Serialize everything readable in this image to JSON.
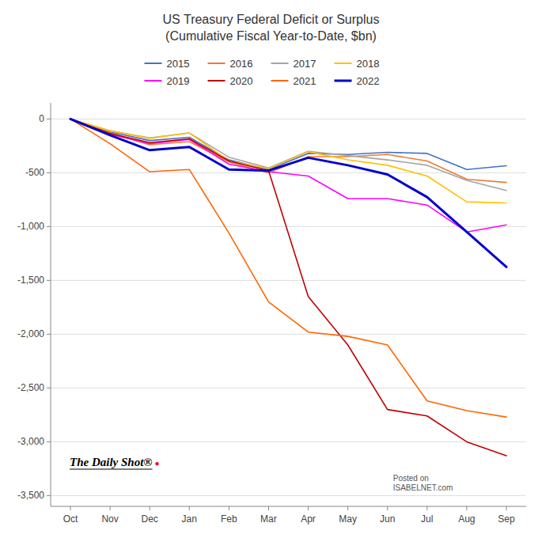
{
  "chart_data": {
    "type": "line",
    "title": "US Treasury Federal Deficit or Surplus\n(Cumulative Fiscal Year-to-Date, $bn)",
    "categories": [
      "Oct",
      "Nov",
      "Dec",
      "Jan",
      "Feb",
      "Mar",
      "Apr",
      "May",
      "Jun",
      "Jul",
      "Aug",
      "Sep"
    ],
    "series": [
      {
        "name": "2015",
        "color": "#4472C4",
        "values": [
          0,
          -120,
          -200,
          -170,
          -380,
          -470,
          -320,
          -330,
          -310,
          -320,
          -470,
          -435
        ]
      },
      {
        "name": "2016",
        "color": "#ED7D31",
        "values": [
          0,
          -130,
          -240,
          -210,
          -400,
          -500,
          -350,
          -350,
          -330,
          -390,
          -560,
          -590
        ]
      },
      {
        "name": "2017",
        "color": "#A5A5A5",
        "values": [
          0,
          -110,
          -175,
          -130,
          -355,
          -455,
          -300,
          -340,
          -380,
          -430,
          -570,
          -665
        ]
      },
      {
        "name": "2018",
        "color": "#FFC000",
        "values": [
          0,
          -110,
          -180,
          -130,
          -390,
          -460,
          -305,
          -380,
          -430,
          -530,
          -770,
          -780
        ]
      },
      {
        "name": "2019",
        "color": "#FF00FF",
        "values": [
          0,
          -140,
          -230,
          -190,
          -420,
          -490,
          -530,
          -740,
          -740,
          -800,
          -1050,
          -984
        ]
      },
      {
        "name": "2020",
        "color": "#C00000",
        "values": [
          0,
          -135,
          -220,
          -185,
          -390,
          -480,
          -1650,
          -2100,
          -2700,
          -2760,
          -3000,
          -3130
        ]
      },
      {
        "name": "2021",
        "color": "#FF6600",
        "values": [
          0,
          -230,
          -490,
          -470,
          -1060,
          -1700,
          -1980,
          -2020,
          -2100,
          -2620,
          -2710,
          -2770
        ]
      },
      {
        "name": "2022",
        "color": "#0000CC",
        "values": [
          0,
          -150,
          -290,
          -260,
          -470,
          -480,
          -360,
          -430,
          -515,
          -726,
          -1050,
          -1375
        ]
      }
    ],
    "ylim": [
      -3600,
      150
    ],
    "yticks": [
      0,
      -500,
      {
        "value": -1000,
        "label": "-1,000"
      },
      {
        "value": -1500,
        "label": "-1,500"
      },
      {
        "value": -2000,
        "label": "-2,000"
      },
      {
        "value": -2500,
        "label": "-2,500"
      },
      {
        "value": -3000,
        "label": "-3,000"
      },
      {
        "value": -3500,
        "label": "-3,500"
      }
    ],
    "grid": true,
    "legend": "top",
    "annotations": [
      {
        "text": "The Daily Shot®"
      },
      {
        "text": "●",
        "color": "red"
      },
      {
        "text": "Posted on\nISABELNET.com"
      }
    ]
  }
}
